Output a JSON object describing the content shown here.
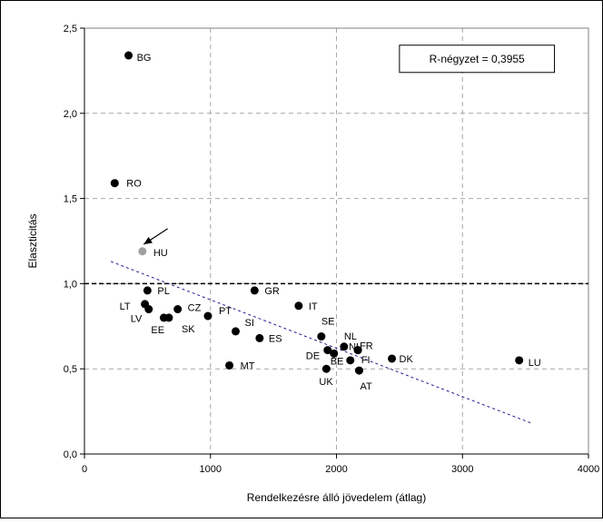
{
  "chart_data": {
    "type": "scatter",
    "xlabel": "Rendelkezésre álló jövedelem (átlag)",
    "ylabel": "Elaszticitás",
    "xlim": [
      0,
      4000
    ],
    "ylim": [
      0.0,
      2.5
    ],
    "x_ticks": [
      "0",
      "1000",
      "2000",
      "3000",
      "4000"
    ],
    "y_ticks": [
      "0,0",
      "0,5",
      "1,0",
      "1,5",
      "2,0",
      "2,5"
    ],
    "x_tick_values": [
      0,
      1000,
      2000,
      3000,
      4000
    ],
    "y_tick_values": [
      0.0,
      0.5,
      1.0,
      1.5,
      2.0,
      2.5
    ],
    "grid": "dashed",
    "annotation": "R-négyzet = 0,3955",
    "reference_line_y": 1.0,
    "trendline": {
      "x": [
        210,
        3550
      ],
      "y": [
        1.13,
        0.18
      ],
      "style": "dotted",
      "color": "#1f1f8f"
    },
    "arrow": {
      "from": [
        660,
        1.28
      ],
      "to": [
        470,
        1.22
      ]
    },
    "colors": {
      "point": "#000000",
      "highlight": "#a0a0a0",
      "trend": "#1f1f8f"
    },
    "points": [
      {
        "label": "BG",
        "x": 350,
        "y": 2.34
      },
      {
        "label": "RO",
        "x": 240,
        "y": 1.59
      },
      {
        "label": "HU",
        "x": 460,
        "y": 1.19,
        "highlight": true
      },
      {
        "label": "PL",
        "x": 500,
        "y": 0.96
      },
      {
        "label": "LT",
        "x": 480,
        "y": 0.88
      },
      {
        "label": "LV",
        "x": 510,
        "y": 0.85
      },
      {
        "label": "EE",
        "x": 630,
        "y": 0.8
      },
      {
        "label": "SK",
        "x": 670,
        "y": 0.8
      },
      {
        "label": "CZ",
        "x": 740,
        "y": 0.85
      },
      {
        "label": "PT",
        "x": 980,
        "y": 0.81
      },
      {
        "label": "MT",
        "x": 1150,
        "y": 0.52
      },
      {
        "label": "SI",
        "x": 1200,
        "y": 0.72
      },
      {
        "label": "GR",
        "x": 1350,
        "y": 0.96
      },
      {
        "label": "ES",
        "x": 1390,
        "y": 0.68
      },
      {
        "label": "IT",
        "x": 1700,
        "y": 0.87
      },
      {
        "label": "SE",
        "x": 1880,
        "y": 0.69
      },
      {
        "label": "DE",
        "x": 1930,
        "y": 0.61
      },
      {
        "label": "UK",
        "x": 1920,
        "y": 0.5
      },
      {
        "label": "BE",
        "x": 1980,
        "y": 0.59
      },
      {
        "label": "NL",
        "x": 2060,
        "y": 0.63
      },
      {
        "label": "FI",
        "x": 2110,
        "y": 0.55
      },
      {
        "label": "NL",
        "x": 2170,
        "y": 0.61
      },
      {
        "label": "FR",
        "x": 2170,
        "y": 0.61
      },
      {
        "label": "AT",
        "x": 2180,
        "y": 0.49
      },
      {
        "label": "DK",
        "x": 2440,
        "y": 0.56
      },
      {
        "label": "LU",
        "x": 3450,
        "y": 0.55
      }
    ]
  }
}
